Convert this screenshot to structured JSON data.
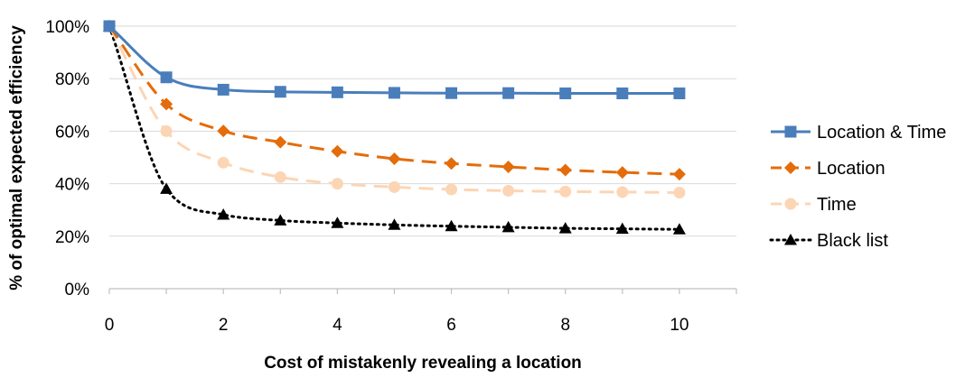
{
  "chart_data": {
    "type": "line",
    "title": "",
    "xlabel": "Cost of mistakenly revealing a location",
    "ylabel": "% of optimal expected efficiency",
    "xlim": [
      0,
      11
    ],
    "ylim": [
      0,
      100
    ],
    "x_ticks": [
      0,
      2,
      4,
      6,
      8,
      10
    ],
    "y_ticks": [
      0,
      20,
      40,
      60,
      80,
      100
    ],
    "y_tick_labels": [
      "0%",
      "20%",
      "40%",
      "60%",
      "80%",
      "100%"
    ],
    "grid": "horizontal",
    "legend_position": "right",
    "x": [
      0,
      1,
      2,
      3,
      4,
      5,
      6,
      7,
      8,
      9,
      10
    ],
    "series": [
      {
        "name": "Location & Time",
        "values": [
          100,
          80.5,
          75.8,
          75.0,
          74.8,
          74.6,
          74.5,
          74.5,
          74.4,
          74.4,
          74.4
        ],
        "color": "#4a7ebb",
        "dash": "solid",
        "marker": "square"
      },
      {
        "name": "Location",
        "values": [
          100,
          70.3,
          60.1,
          55.8,
          52.3,
          49.5,
          47.7,
          46.4,
          45.2,
          44.3,
          43.6
        ],
        "color": "#e46c0a",
        "dash": "dash",
        "marker": "diamond"
      },
      {
        "name": "Time",
        "values": [
          100,
          60.0,
          48.0,
          42.5,
          40.0,
          38.7,
          37.8,
          37.3,
          37.0,
          36.8,
          36.6
        ],
        "color": "#fcd5b5",
        "dash": "dash",
        "marker": "circle"
      },
      {
        "name": "Black list",
        "values": [
          100,
          38.0,
          28.2,
          26.0,
          25.0,
          24.3,
          23.8,
          23.4,
          23.0,
          22.8,
          22.6
        ],
        "color": "#000000",
        "dash": "dot",
        "marker": "triangle"
      }
    ]
  }
}
